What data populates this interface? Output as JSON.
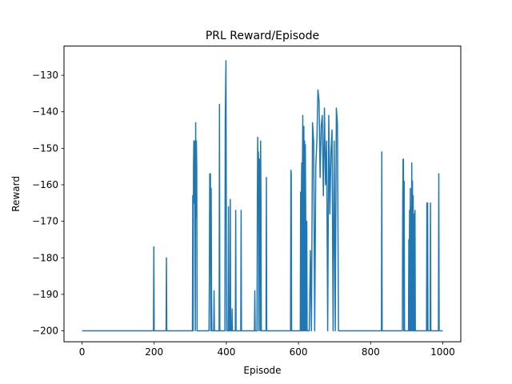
{
  "chart_data": {
    "type": "line",
    "title": "PRL Reward/Episode",
    "xlabel": "Episode",
    "ylabel": "Reward",
    "xlim": [
      -50,
      1050
    ],
    "ylim": [
      -203,
      -122
    ],
    "xticks": [
      0,
      200,
      400,
      600,
      800,
      1000
    ],
    "yticks": [
      -200,
      -190,
      -180,
      -170,
      -160,
      -150,
      -140,
      -130
    ],
    "grid": false,
    "legend": "none",
    "series": [
      {
        "color": "#1f77b4",
        "x": [
          0,
          198,
          199,
          200,
          233,
          234,
          235,
          306,
          307,
          308,
          309,
          310,
          311,
          312,
          313,
          314,
          315,
          316,
          317,
          318,
          319,
          352,
          353,
          354,
          355,
          356,
          357,
          358,
          359,
          360,
          365,
          366,
          367,
          380,
          381,
          382,
          396,
          397,
          398,
          399,
          400,
          401,
          402,
          405,
          406,
          407,
          410,
          411,
          412,
          415,
          416,
          417,
          425,
          426,
          427,
          440,
          441,
          442,
          478,
          479,
          480,
          485,
          486,
          487,
          488,
          489,
          490,
          491,
          492,
          493,
          494,
          495,
          496,
          497,
          498,
          510,
          511,
          512,
          578,
          579,
          580,
          581,
          582,
          583,
          605,
          606,
          607,
          608,
          609,
          610,
          611,
          612,
          613,
          614,
          615,
          616,
          617,
          618,
          619,
          620,
          621,
          622,
          623,
          624,
          625,
          626,
          627,
          630,
          633,
          636,
          639,
          642,
          645,
          648,
          651,
          654,
          657,
          660,
          663,
          666,
          669,
          672,
          675,
          678,
          681,
          684,
          687,
          690,
          693,
          696,
          699,
          702,
          705,
          708,
          711,
          714,
          717,
          830,
          831,
          832,
          833,
          834,
          888,
          889,
          890,
          891,
          892,
          893,
          894,
          895,
          896,
          897,
          898,
          899,
          905,
          906,
          907,
          908,
          909,
          910,
          911,
          912,
          913,
          914,
          915,
          916,
          917,
          918,
          919,
          920,
          921,
          922,
          923,
          924,
          925,
          926,
          927,
          928,
          929,
          930,
          931,
          932,
          933,
          934,
          935,
          936,
          937,
          938,
          939,
          955,
          956,
          957,
          958,
          959,
          965,
          966,
          967,
          968,
          969,
          988,
          989,
          990,
          991,
          992,
          1000
        ],
        "y": [
          -200,
          -200,
          -177,
          -200,
          -200,
          -180,
          -200,
          -200,
          -163,
          -200,
          -155,
          -148,
          -165,
          -148,
          -158,
          -200,
          -143,
          -169,
          -148,
          -155,
          -200,
          -200,
          -185,
          -157,
          -172,
          -157,
          -200,
          -161,
          -190,
          -200,
          -200,
          -189,
          -200,
          -200,
          -138,
          -200,
          -200,
          -142,
          -134,
          -126,
          -171,
          -200,
          -200,
          -200,
          -166,
          -200,
          -200,
          -164,
          -200,
          -200,
          -194,
          -200,
          -200,
          -167,
          -200,
          -200,
          -167,
          -200,
          -200,
          -189,
          -200,
          -200,
          -165,
          -147,
          -162,
          -151,
          -200,
          -153,
          -159,
          -153,
          -200,
          -148,
          -164,
          -200,
          -200,
          -200,
          -158,
          -200,
          -200,
          -156,
          -157,
          -200,
          -200,
          -200,
          -200,
          -162,
          -200,
          -164,
          -154,
          -200,
          -155,
          -141,
          -200,
          -166,
          -144,
          -200,
          -148,
          -200,
          -149,
          -167,
          -200,
          -200,
          -170,
          -200,
          -200,
          -200,
          -200,
          -200,
          -178,
          -200,
          -143,
          -148,
          -200,
          -155,
          -148,
          -134,
          -137,
          -158,
          -144,
          -141,
          -163,
          -139,
          -160,
          -148,
          -200,
          -141,
          -168,
          -151,
          -145,
          -200,
          -148,
          -200,
          -139,
          -143,
          -200,
          -200,
          -200,
          -200,
          -151,
          -200,
          -200,
          -200,
          -200,
          -165,
          -153,
          -153,
          -200,
          -159,
          -200,
          -200,
          -200,
          -200,
          -200,
          -200,
          -200,
          -175,
          -200,
          -167,
          -200,
          -161,
          -200,
          -166,
          -200,
          -154,
          -200,
          -159,
          -200,
          -163,
          -200,
          -200,
          -168,
          -200,
          -167,
          -200,
          -200,
          -200,
          -200,
          -200,
          -200,
          -200,
          -200,
          -200,
          -200,
          -200,
          -200,
          -200,
          -200,
          -200,
          -200,
          -200,
          -165,
          -200,
          -165,
          -200,
          -200,
          -165,
          -200,
          -200,
          -200,
          -200,
          -157,
          -200,
          -200,
          -200,
          -200
        ]
      }
    ]
  }
}
